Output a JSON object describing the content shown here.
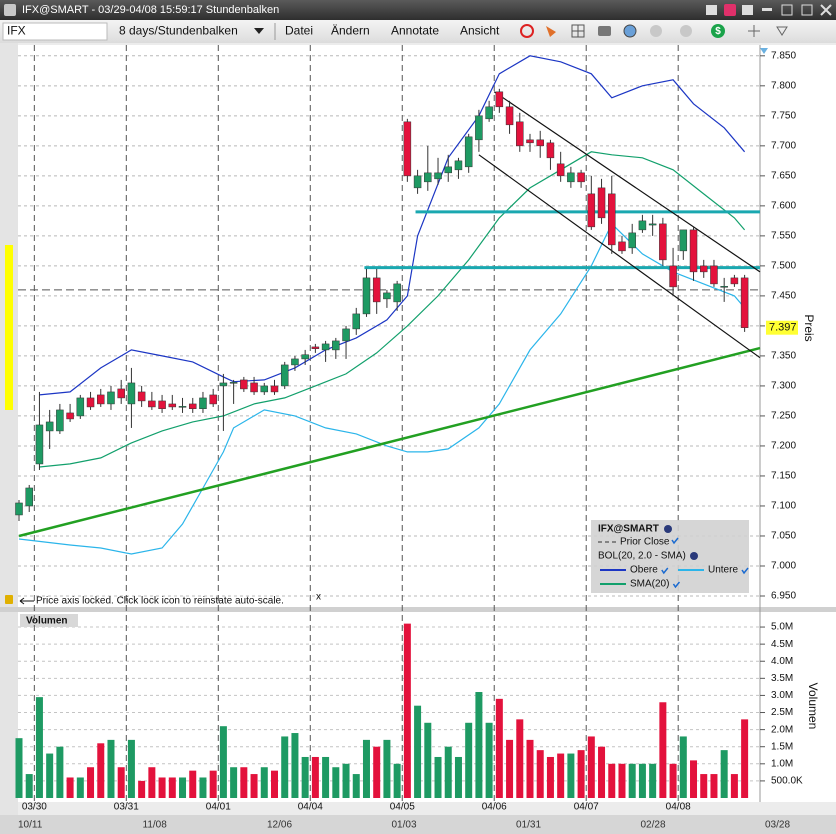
{
  "window": {
    "title": "IFX@SMART - 03/29-04/08 15:59:17 Stundenbalken"
  },
  "toolbar": {
    "symbol": "IFX",
    "period": "8 days/Stundenbalken",
    "menus": [
      "Datei",
      "Ändern",
      "Annotate",
      "Ansicht"
    ]
  },
  "notice": {
    "text": "Price axis locked. Click lock icon to reinstate auto-scale.",
    "close": "x"
  },
  "navigator": {
    "labels": [
      "10/11",
      "11/08",
      "12/06",
      "01/03",
      "01/31",
      "02/28",
      "03/28"
    ]
  },
  "chart_data": [
    {
      "type": "candlestick",
      "y_axis_label": "Preis",
      "up_color": "#1e9a63",
      "down_color": "#e3123c",
      "categories": [
        null,
        null,
        "03/30",
        null,
        null,
        null,
        null,
        null,
        null,
        null,
        null,
        "03/31",
        null,
        null,
        null,
        null,
        null,
        null,
        null,
        null,
        "04/01",
        null,
        null,
        null,
        null,
        null,
        null,
        null,
        null,
        "04/04",
        null,
        null,
        null,
        null,
        null,
        null,
        null,
        null,
        "04/05",
        null,
        null,
        null,
        null,
        null,
        null,
        null,
        null,
        "04/06",
        null,
        null,
        null,
        null,
        null,
        null,
        null,
        null,
        "04/07",
        null,
        null,
        null,
        null,
        null,
        null,
        null,
        null,
        "04/08",
        null,
        null,
        null,
        null,
        null,
        null
      ],
      "open": [
        7.085,
        7.1,
        7.17,
        7.225,
        7.225,
        7.255,
        7.25,
        7.28,
        7.285,
        7.27,
        7.295,
        7.27,
        7.29,
        7.275,
        7.275,
        7.27,
        7.265,
        7.27,
        7.262,
        7.285,
        7.3,
        7.305,
        7.31,
        7.305,
        7.29,
        7.3,
        7.3,
        7.335,
        7.345,
        7.365,
        7.36,
        7.36,
        7.375,
        7.395,
        7.42,
        7.48,
        7.445,
        7.44,
        7.74,
        7.63,
        7.64,
        7.645,
        7.655,
        7.66,
        7.665,
        7.71,
        7.745,
        7.79,
        7.765,
        7.74,
        7.71,
        7.71,
        7.705,
        7.67,
        7.64,
        7.655,
        7.62,
        7.63,
        7.62,
        7.54,
        7.53,
        7.56,
        7.568,
        7.57,
        7.5,
        7.525,
        7.56,
        7.5,
        7.5,
        7.465,
        7.48,
        7.48
      ],
      "high": [
        7.11,
        7.135,
        7.29,
        7.26,
        7.27,
        7.27,
        7.285,
        7.29,
        7.295,
        7.3,
        7.31,
        7.33,
        7.3,
        7.29,
        7.285,
        7.285,
        7.28,
        7.28,
        7.29,
        7.295,
        7.32,
        7.31,
        7.315,
        7.315,
        7.305,
        7.31,
        7.34,
        7.35,
        7.36,
        7.37,
        7.375,
        7.38,
        7.4,
        7.43,
        7.495,
        7.495,
        7.46,
        7.475,
        7.745,
        7.66,
        7.7,
        7.68,
        7.685,
        7.68,
        7.72,
        7.76,
        7.775,
        7.795,
        7.775,
        7.755,
        7.72,
        7.725,
        7.71,
        7.69,
        7.665,
        7.66,
        7.65,
        7.645,
        7.65,
        7.55,
        7.57,
        7.585,
        7.585,
        7.58,
        7.53,
        7.56,
        7.565,
        7.51,
        7.51,
        7.48,
        7.485,
        7.485
      ],
      "low": [
        7.075,
        7.09,
        7.16,
        7.195,
        7.22,
        7.24,
        7.245,
        7.26,
        7.265,
        7.26,
        7.27,
        7.23,
        7.265,
        7.26,
        7.255,
        7.26,
        7.255,
        7.255,
        7.255,
        7.265,
        7.225,
        7.27,
        7.29,
        7.285,
        7.285,
        7.285,
        7.295,
        7.325,
        7.335,
        7.355,
        7.34,
        7.345,
        7.345,
        7.385,
        7.415,
        7.42,
        7.43,
        7.425,
        7.64,
        7.62,
        7.625,
        7.635,
        7.64,
        7.645,
        7.655,
        7.69,
        7.74,
        7.755,
        7.72,
        7.69,
        7.69,
        7.68,
        7.66,
        7.64,
        7.63,
        7.63,
        7.56,
        7.57,
        7.52,
        7.52,
        7.52,
        7.555,
        7.55,
        7.5,
        7.45,
        7.51,
        7.475,
        7.48,
        7.465,
        7.44,
        7.465,
        7.39
      ],
      "close": [
        7.105,
        7.13,
        7.235,
        7.24,
        7.26,
        7.245,
        7.28,
        7.265,
        7.27,
        7.29,
        7.28,
        7.305,
        7.275,
        7.265,
        7.262,
        7.265,
        7.266,
        7.262,
        7.28,
        7.27,
        7.305,
        7.306,
        7.295,
        7.29,
        7.3,
        7.29,
        7.335,
        7.345,
        7.352,
        7.362,
        7.37,
        7.375,
        7.395,
        7.42,
        7.48,
        7.44,
        7.455,
        7.47,
        7.65,
        7.65,
        7.655,
        7.655,
        7.665,
        7.675,
        7.715,
        7.75,
        7.765,
        7.765,
        7.735,
        7.7,
        7.705,
        7.7,
        7.68,
        7.65,
        7.655,
        7.64,
        7.565,
        7.58,
        7.535,
        7.525,
        7.555,
        7.575,
        7.57,
        7.51,
        7.465,
        7.56,
        7.49,
        7.49,
        7.47,
        7.466,
        7.47,
        7.397
      ],
      "ylim": [
        6.935,
        7.868
      ],
      "yticks": [
        {
          "value": 6.95,
          "label": "6.950"
        },
        {
          "value": 7.0,
          "label": "7.000"
        },
        {
          "value": 7.05,
          "label": "7.050"
        },
        {
          "value": 7.1,
          "label": "7.100"
        },
        {
          "value": 7.15,
          "label": "7.150"
        },
        {
          "value": 7.2,
          "label": "7.200"
        },
        {
          "value": 7.25,
          "label": "7.250"
        },
        {
          "value": 7.3,
          "label": "7.300"
        },
        {
          "value": 7.35,
          "label": "7.350"
        },
        {
          "value": 7.4,
          "label": "7.400"
        },
        {
          "value": 7.45,
          "label": "7.450"
        },
        {
          "value": 7.5,
          "label": "7.500"
        },
        {
          "value": 7.55,
          "label": "7.550"
        },
        {
          "value": 7.6,
          "label": "7.600"
        },
        {
          "value": 7.65,
          "label": "7.650"
        },
        {
          "value": 7.7,
          "label": "7.700"
        },
        {
          "value": 7.75,
          "label": "7.750"
        },
        {
          "value": 7.8,
          "label": "7.800"
        },
        {
          "value": 7.85,
          "label": "7.850"
        }
      ],
      "grid": true,
      "last_price": 7.397,
      "prior_close": 7.46,
      "legend_title": "IFX@SMART",
      "prior_close_label": "Prior Close",
      "indicator_label": "BOL(20, 2.0 - SMA)",
      "overlays": [
        {
          "name": "Obere",
          "color": "#1c36c4",
          "x": [
            2,
            5,
            8,
            11,
            14,
            17,
            20,
            21,
            24,
            27,
            30,
            33,
            36,
            38,
            39,
            42,
            45,
            47,
            50,
            53,
            56,
            58,
            61,
            64,
            66,
            69,
            71
          ],
          "values": [
            7.285,
            7.29,
            7.33,
            7.36,
            7.35,
            7.34,
            7.315,
            7.307,
            7.31,
            7.33,
            7.36,
            7.38,
            7.41,
            7.45,
            7.55,
            7.68,
            7.75,
            7.82,
            7.85,
            7.84,
            7.82,
            7.78,
            7.8,
            7.81,
            7.77,
            7.73,
            7.69
          ]
        },
        {
          "name": "Untere",
          "color": "#2bb5ea",
          "x": [
            0,
            5,
            8,
            11,
            14,
            16,
            18,
            20,
            21,
            24,
            27,
            30,
            33,
            36,
            38,
            40,
            42,
            45,
            47,
            50,
            53,
            56,
            58,
            61,
            64,
            67,
            70,
            71
          ],
          "values": [
            7.045,
            7.035,
            7.03,
            7.02,
            7.03,
            7.07,
            7.13,
            7.19,
            7.23,
            7.26,
            7.25,
            7.23,
            7.22,
            7.2,
            7.19,
            7.19,
            7.195,
            7.23,
            7.27,
            7.36,
            7.42,
            7.5,
            7.57,
            7.52,
            7.49,
            7.47,
            7.45,
            7.43
          ]
        },
        {
          "name": "SMA(20)",
          "color": "#12a06c",
          "x": [
            2,
            5,
            8,
            11,
            14,
            17,
            20,
            23,
            26,
            29,
            32,
            35,
            38,
            41,
            44,
            47,
            50,
            53,
            56,
            58,
            61,
            64,
            67,
            70,
            71
          ],
          "values": [
            7.165,
            7.17,
            7.18,
            7.205,
            7.225,
            7.24,
            7.25,
            7.27,
            7.28,
            7.3,
            7.32,
            7.355,
            7.4,
            7.45,
            7.51,
            7.58,
            7.63,
            7.66,
            7.69,
            7.685,
            7.68,
            7.66,
            7.62,
            7.58,
            7.56
          ]
        }
      ],
      "trendlines": [
        {
          "color": "#22a022",
          "x": [
            0,
            72.5
          ],
          "values": [
            7.05,
            7.363
          ]
        },
        {
          "color": "#111111",
          "x": [
            46.5,
            72.5
          ],
          "values": [
            7.79,
            7.49
          ]
        },
        {
          "color": "#111111",
          "x": [
            45,
            72.5
          ],
          "values": [
            7.685,
            7.347
          ]
        }
      ],
      "level_lines": [
        {
          "color": "#1aa8b0",
          "value": 7.59,
          "x": [
            38.8,
            72.5
          ]
        },
        {
          "color": "#1aa8b0",
          "value": 7.497,
          "x": [
            33.8,
            72.5
          ]
        }
      ]
    },
    {
      "type": "bar",
      "title": "Volumen",
      "y_axis_label": "Volumen",
      "values": [
        1750000,
        700000,
        2950000,
        1300000,
        1500000,
        600000,
        600000,
        900000,
        1600000,
        1700000,
        900000,
        1700000,
        500000,
        900000,
        600000,
        600000,
        600000,
        800000,
        600000,
        800000,
        2100000,
        900000,
        900000,
        700000,
        900000,
        800000,
        1800000,
        1900000,
        1200000,
        1200000,
        1200000,
        900000,
        1000000,
        700000,
        1700000,
        1500000,
        1700000,
        1000000,
        5100000,
        2700000,
        2200000,
        1200000,
        1500000,
        1200000,
        2200000,
        3100000,
        2200000,
        2900000,
        1700000,
        2300000,
        1700000,
        1400000,
        1200000,
        1300000,
        1300000,
        1400000,
        1800000,
        1500000,
        1000000,
        1000000,
        1000000,
        1000000,
        1000000,
        2800000,
        1000000,
        1800000,
        1100000,
        700000,
        700000,
        1400000,
        700000,
        2300000
      ],
      "ylim": [
        0,
        5440000
      ],
      "yticks": [
        {
          "value": 500000,
          "label": "500.0K"
        },
        {
          "value": 1000000,
          "label": "1.0M"
        },
        {
          "value": 1500000,
          "label": "1.5M"
        },
        {
          "value": 2000000,
          "label": "2.0M"
        },
        {
          "value": 2500000,
          "label": "2.5M"
        },
        {
          "value": 3000000,
          "label": "3.0M"
        },
        {
          "value": 3500000,
          "label": "3.5M"
        },
        {
          "value": 4000000,
          "label": "4.0M"
        },
        {
          "value": 4500000,
          "label": "4.5M"
        },
        {
          "value": 5000000,
          "label": "5.0M"
        }
      ],
      "grid": true
    }
  ]
}
